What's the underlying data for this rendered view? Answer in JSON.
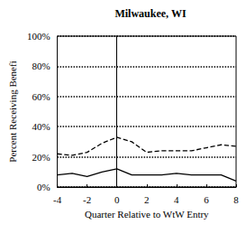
{
  "chart_data": {
    "type": "line",
    "title": "Milwaukee, WI",
    "x_label": "Quarter Relative to WtW Entry",
    "y_label": "Percent Receiving Benefi",
    "x": [
      -4,
      -3,
      -2,
      -1,
      0,
      1,
      2,
      3,
      4,
      5,
      6,
      7,
      8
    ],
    "series": [
      {
        "color": "#000000",
        "line_style": "dashed",
        "marker": "none",
        "values": [
          22,
          21,
          23,
          29,
          33,
          30,
          23,
          24,
          24,
          24,
          26,
          28,
          27
        ]
      },
      {
        "color": "#000000",
        "line_style": "solid",
        "marker": "none",
        "values": [
          8,
          9,
          7,
          10,
          12,
          8,
          8,
          8,
          9,
          8,
          8,
          8,
          4
        ]
      }
    ],
    "xlim": [
      -4,
      8
    ],
    "xticks": [
      -4,
      -2,
      0,
      2,
      4,
      6,
      8
    ],
    "ylim": [
      0,
      100
    ],
    "yticks": [
      {
        "value": 0,
        "label": "0%"
      },
      {
        "value": 20,
        "label": "20%"
      },
      {
        "value": 40,
        "label": "40%"
      },
      {
        "value": 60,
        "label": "60%"
      },
      {
        "value": 80,
        "label": "80%"
      },
      {
        "value": 100,
        "label": "100%"
      }
    ],
    "grid": true
  }
}
